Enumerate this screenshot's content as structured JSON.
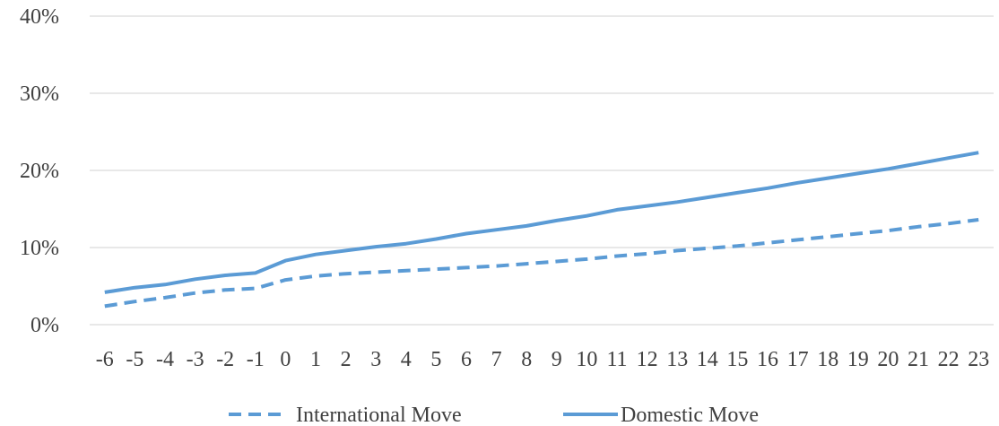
{
  "chart_data": {
    "type": "line",
    "title": "",
    "xlabel": "",
    "ylabel": "",
    "x": [
      -6,
      -5,
      -4,
      -3,
      -2,
      -1,
      0,
      1,
      2,
      3,
      4,
      5,
      6,
      7,
      8,
      9,
      10,
      11,
      12,
      13,
      14,
      15,
      16,
      17,
      18,
      19,
      20,
      21,
      22,
      23
    ],
    "x_tick_labels": [
      "-6",
      "-5",
      "-4",
      "-3",
      "-2",
      "-1",
      "0",
      "1",
      "2",
      "3",
      "4",
      "5",
      "6",
      "7",
      "8",
      "9",
      "10",
      "11",
      "12",
      "13",
      "14",
      "15",
      "16",
      "17",
      "18",
      "19",
      "20",
      "21",
      "22",
      "23"
    ],
    "ylim": [
      0,
      40
    ],
    "y_ticks": [
      0,
      10,
      20,
      30,
      40
    ],
    "y_tick_labels": [
      "0%",
      "10%",
      "20%",
      "30%",
      "40%"
    ],
    "grid": "horizontal",
    "legend_position": "bottom",
    "series": [
      {
        "name": "International Move",
        "style": "dashed",
        "color": "#5b9bd5",
        "values": [
          2.4,
          3.0,
          3.5,
          4.1,
          4.5,
          4.7,
          5.8,
          6.3,
          6.6,
          6.8,
          7.0,
          7.2,
          7.4,
          7.6,
          7.9,
          8.2,
          8.5,
          8.9,
          9.2,
          9.6,
          9.9,
          10.2,
          10.6,
          11.0,
          11.4,
          11.8,
          12.2,
          12.7,
          13.1,
          13.6
        ]
      },
      {
        "name": "Domestic Move",
        "style": "solid",
        "color": "#5b9bd5",
        "values": [
          4.2,
          4.8,
          5.2,
          5.9,
          6.4,
          6.7,
          8.3,
          9.1,
          9.6,
          10.1,
          10.5,
          11.1,
          11.8,
          12.3,
          12.8,
          13.5,
          14.1,
          14.9,
          15.4,
          15.9,
          16.5,
          17.1,
          17.7,
          18.4,
          19.0,
          19.6,
          20.2,
          20.9,
          21.6,
          22.3
        ]
      }
    ]
  }
}
